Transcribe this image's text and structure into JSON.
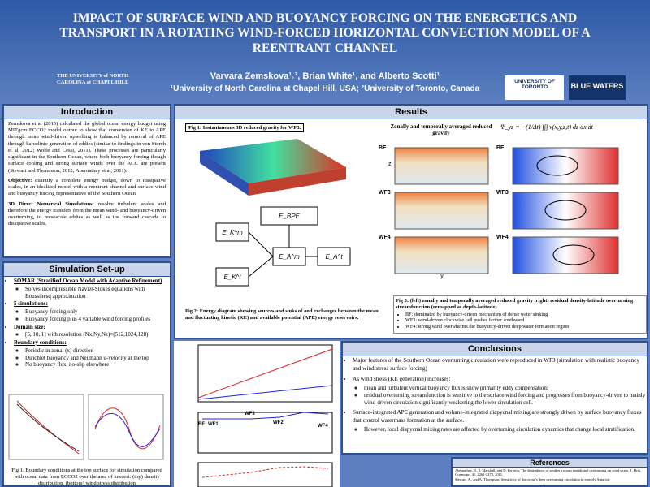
{
  "header": {
    "title": "IMPACT OF SURFACE WIND AND BUOYANCY FORCING ON THE ENERGETICS AND TRANSPORT IN A ROTATING WIND-FORCED HORIZONTAL CONVECTION MODEL OF A REENTRANT CHANNEL",
    "authors": "Varvara Zemskova¹˒², Brian White¹, and Alberto Scotti¹",
    "affiliation": "¹University of North Carolina at Chapel Hill, USA; ²University of Toronto, Canada",
    "logos": [
      "THE UNIVERSITY of NORTH CAROLINA at CHAPEL HILL",
      "UNIVERSITY OF TORONTO",
      "BLUE WATERS"
    ]
  },
  "introduction": {
    "heading": "Introduction",
    "paragraphs": [
      "Zemskova et al (2015) calculated the global ocean energy budget using MITgcm ECCO2 model output to show that conversion of KE to APE through mean wind-driven upwelling is balanced by removal of APE through baroclinic generation of eddies (similar to findings in von Storch et al, 2012; Wolfe and Cessi, 2011). These processes are particularly significant in the Southern Ocean, where both buoyancy forcing though surface cooling and strong surface winds over the ACC are present (Stewart and Thompson, 2012; Abernathey et al, 2011)."
    ],
    "objective_label": "Objective:",
    "objective": "quantify a complete energy budget, down to dissipative scales, in an idealized model with a reentrant channel and surface wind and buoyancy forcing representative of the Southern Ocean.",
    "dns_label": "3D Direct Numerical Simulations:",
    "dns": "resolve turbulent scales and therefore the energy transfers from the mean wind- and buoyancy-driven overturning, to mesoscale eddies as well as the forward cascade to dissipative scales."
  },
  "setup": {
    "heading": "Simulation Set-up",
    "items": [
      {
        "title": "SOMAR (Stratified Ocean Model with Adaptive Refinement)",
        "sub": [
          "Solves incompressible Navier-Stokes equations with Boussinesq approximation"
        ]
      },
      {
        "title": "5 simulations:",
        "sub": [
          "Buoyancy forcing only",
          "Buoyancy forcing plus 4 variable wind forcing profiles"
        ]
      },
      {
        "title": "Domain size:",
        "sub": [
          "[5, 10, 1] with resolution (Nx,Ny,Nz)=(512,1024,128)"
        ]
      },
      {
        "title": "Boundary conditions:",
        "sub": [
          "Periodic in zonal (x) direction",
          "Dirichlet buoyancy and Neumann u-velocity at the top",
          "No buoyancy flux, no-slip elsewhere"
        ]
      }
    ],
    "fig_caption": "Fig 1. Boundary conditions at the top surface for simulation compared with ocean data from ECCO2 over the area of interest: (top) density distribution, (bottom) wind stress distribution"
  },
  "results": {
    "heading": "Results",
    "fig1_caption": "Fig 1: Instantaneous 3D reduced gravity for WF3.",
    "fig2_caption": "Fig 2: Energy diagram showing sources and sinks of and exchanges between the mean and fluctuating kinetic (KE) and available potential (APE) energy reservoirs.",
    "nodes": [
      "E_BPE",
      "E_K^m",
      "E_A^m",
      "E_K^t",
      "E_A^t"
    ],
    "panel_title": "Zonally and temporally averaged reduced gravity",
    "panels": [
      "BF",
      "WF3",
      "WF4"
    ],
    "equation": "Ψ_yz = −(1/Δt) ∫∫∫ v(x,y,z,t) dz dx dt",
    "axis_y": "y",
    "axis_z": "z",
    "fig3_caption": "Fig 3: (left) zonally and temporally averaged reduced gravity (right) residual density-latitude overturning streamfunction (remapped as depth-latitude)",
    "fig3_bullets": [
      "BF: dominated by buoyancy-driven mechanism of dense water sinking",
      "WF3: wind-driven clockwise cell pushes farther southward",
      "WF4: strong wind overwhelms the buoyancy-driven deep water formation region"
    ],
    "plot_points": [
      "BF",
      "WF1",
      "WF3",
      "WF2",
      "WF4"
    ]
  },
  "conclusions": {
    "heading": "Conclusions",
    "items": [
      {
        "text": "Major features of the Southern Ocean overturning circulation were reproduced in WF3 (simulation with realistic buoyancy and wind stress surface forcing)",
        "sub": []
      },
      {
        "text": "As wind stress (KE generation) increases:",
        "sub": [
          "mean and turbulent vertical buoyancy fluxes show primarily eddy compensation;",
          "residual overturning streamfunction is sensitive to the surface wind forcing and progresses from buoyancy-driven to mainly wind-driven circulation significantly weakening the lower circulation cell."
        ]
      },
      {
        "text": "Surface-integrated APE generation and volume-integrated diapycnal mixing are strongly driven by surface buoyancy fluxes that control watermass formation at the surface.",
        "sub": [
          "However, local diapycnal mixing rates are affected by overturning circulation dynamics that change local stratification."
        ]
      }
    ]
  },
  "references": {
    "heading": "References",
    "items": [
      "Abernathey, R., J. Marshall, and D. Ferreira, The dependence of southern ocean meridional overturning on wind stress, J. Phys. Oceanogr., 41, 2261-2278, 2011.",
      "Stewart, A., and A. Thompson, Sensitivity of the ocean's deep overturning circulation to easterly Antarctic"
    ]
  }
}
